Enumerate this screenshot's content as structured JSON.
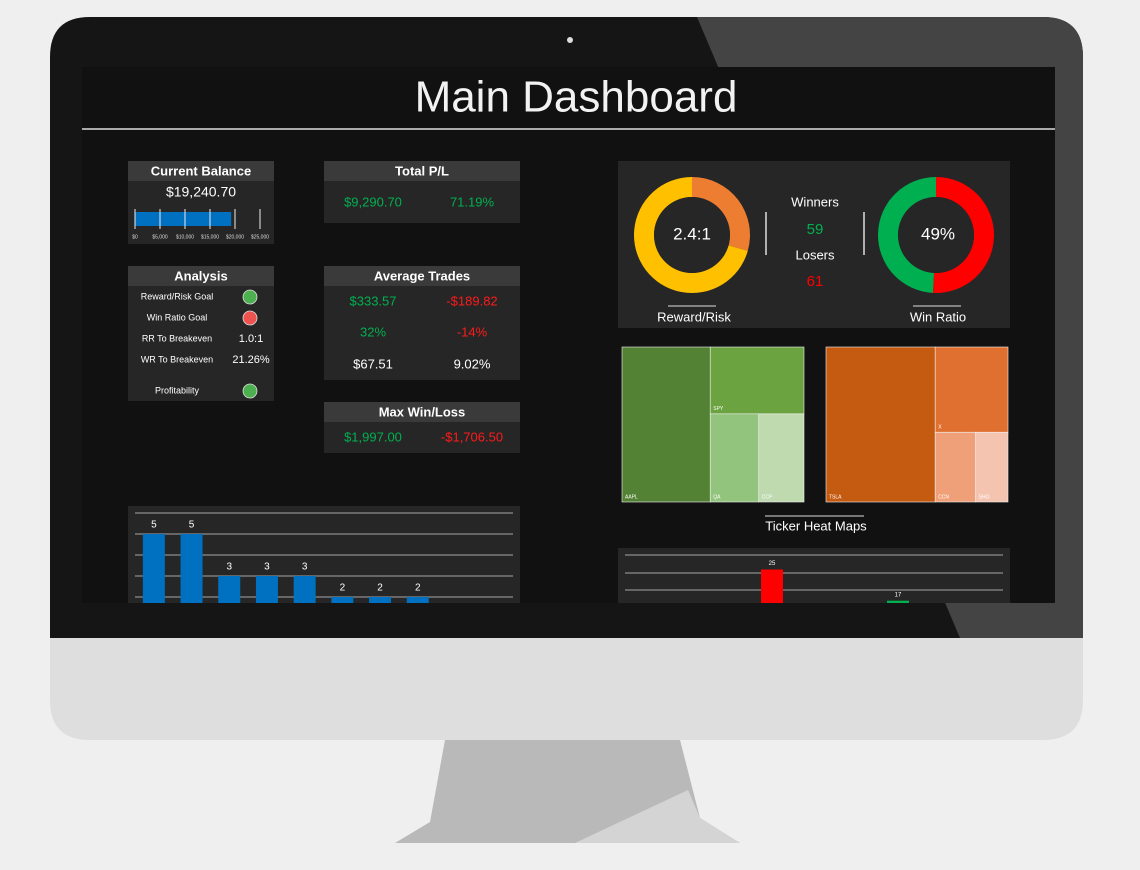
{
  "header": {
    "title": "Main Dashboard"
  },
  "current_balance": {
    "title": "Current Balance",
    "value_label": "$19,240.70",
    "value": 19240.7,
    "color": "#0070c0",
    "xlim": [
      0,
      25000
    ],
    "xticks": [
      {
        "value": 0,
        "label": "$0"
      },
      {
        "value": 5000,
        "label": "$5,000"
      },
      {
        "value": 10000,
        "label": "$10,000"
      },
      {
        "value": 15000,
        "label": "$15,000"
      },
      {
        "value": 20000,
        "label": "$20,000"
      },
      {
        "value": 25000,
        "label": "$25,000"
      }
    ]
  },
  "total_pl": {
    "title": "Total P/L",
    "cells": [
      {
        "text": "$9,290.70",
        "color": "#00b050"
      },
      {
        "text": "71.19%",
        "color": "#00b050"
      }
    ]
  },
  "analysis": {
    "title": "Analysis",
    "rows": [
      {
        "label": "Reward/Risk Goal",
        "status": "#4caf50"
      },
      {
        "label": "Win Ratio Goal",
        "status": "#ef5350"
      },
      {
        "label": "RR To Breakeven",
        "value": "1.0:1"
      },
      {
        "label": "WR To Breakeven",
        "value": "21.26%"
      },
      {
        "label": "Profitability",
        "status": "#4caf50"
      }
    ]
  },
  "average_trades": {
    "title": "Average Trades",
    "rows": [
      [
        {
          "text": "$333.57",
          "color": "#00b050"
        },
        {
          "text": "-$189.82",
          "color": "#ff1a1a"
        }
      ],
      [
        {
          "text": "32%",
          "color": "#00b050"
        },
        {
          "text": "-14%",
          "color": "#ff1a1a"
        }
      ],
      [
        {
          "text": "$67.51",
          "color": "#ffffff"
        },
        {
          "text": "9.02%",
          "color": "#ffffff"
        }
      ]
    ]
  },
  "max_win_loss": {
    "title": "Max Win/Loss",
    "cells": [
      {
        "text": "$1,997.00",
        "color": "#00b050"
      },
      {
        "text": "-$1,706.50",
        "color": "#ff1a1a"
      }
    ]
  },
  "reward_risk": {
    "center_label": "2.4:1",
    "caption": "Reward/Risk",
    "values": [
      1,
      2.4
    ],
    "colors": [
      "#ed7d31",
      "#ffc000"
    ]
  },
  "win_ratio": {
    "center_label": "49%",
    "caption": "Win Ratio",
    "winners": {
      "label": "Winners",
      "value": 59,
      "color": "#00b050"
    },
    "losers": {
      "label": "Losers",
      "value": 61,
      "color": "#ff0000"
    }
  },
  "heat_maps": {
    "caption": "Ticker Heat Maps",
    "maps": [
      {
        "labels": [
          "AAPL",
          "SPY",
          "QA",
          "CCP"
        ],
        "values": [
          48,
          22,
          15,
          14
        ],
        "colors": [
          "#548235",
          "#6aa33f",
          "#93c47d",
          "#c0dab0"
        ]
      },
      {
        "labels": [
          "TSLA",
          "X",
          "CCN",
          "SHO"
        ],
        "values": [
          60,
          22,
          10,
          8
        ],
        "colors": [
          "#c55a11",
          "#e07030",
          "#f0a078",
          "#f4c4b0"
        ]
      }
    ]
  },
  "count_chart": {
    "type": "bar",
    "values": [
      5,
      5,
      3,
      3,
      3,
      2,
      2,
      2
    ],
    "color": "#0070c0",
    "ylim": [
      0,
      6
    ]
  },
  "pl_chart": {
    "type": "bar",
    "categories": [
      null,
      null,
      null,
      null,
      null,
      null,
      null,
      null,
      null
    ],
    "values": [
      null,
      null,
      null,
      25,
      null,
      null,
      17,
      null,
      null
    ],
    "colors": [
      "#ff0000",
      "#ff0000",
      "#ff0000",
      "#ff0000",
      "#00b050",
      "#00b050",
      "#00b050",
      "#00b050",
      "#00b050"
    ],
    "ylim": [
      0,
      30
    ]
  }
}
